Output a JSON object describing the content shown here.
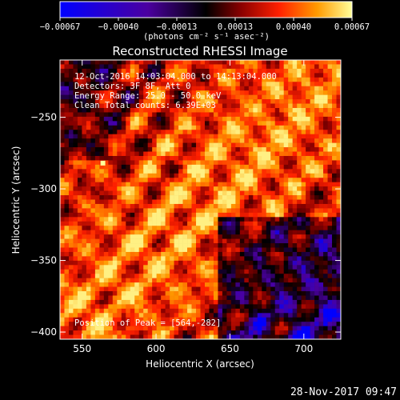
{
  "chart_data": {
    "type": "heatmap",
    "title": "Reconstructed RHESSI Image",
    "xlabel": "Heliocentric X (arcsec)",
    "ylabel": "Heliocentric Y (arcsec)",
    "xlim": [
      535,
      725
    ],
    "ylim": [
      -405,
      -210
    ],
    "x_ticks": [
      550,
      600,
      650,
      700
    ],
    "y_ticks": [
      -250,
      -300,
      -350,
      -400
    ],
    "x_tick_labels": [
      "550",
      "600",
      "650",
      "700"
    ],
    "y_tick_labels": [
      "−250",
      "−300",
      "−350",
      "−400"
    ],
    "colorbar": {
      "range": [
        -0.00067,
        0.00067
      ],
      "tick_labels": [
        "−0.00067",
        "−0.00040",
        "−0.00013",
        "0.00013",
        "0.00040",
        "0.00067"
      ],
      "unit_label": "(photons cm⁻² s⁻¹ asec⁻²)",
      "colormap": [
        "#0000ff",
        "#4b00a0",
        "#000000",
        "#8a0000",
        "#ff2000",
        "#ff9a00",
        "#ffff9a"
      ]
    },
    "annotations": [
      "12-Oct-2016 14:03:04.000 to 14:13:04.000",
      "Detectors: 3F 8F, Att 0",
      "Energy Range: 25.0 - 50.0 keV",
      "Clean    Total counts: 6.39E+03"
    ],
    "peak_label": "Position of Peak = [564,-282]",
    "peak": {
      "x": 564,
      "y": -282
    },
    "peak_value": 0.00067
  },
  "footer_date": "28-Nov-2017 09:47"
}
